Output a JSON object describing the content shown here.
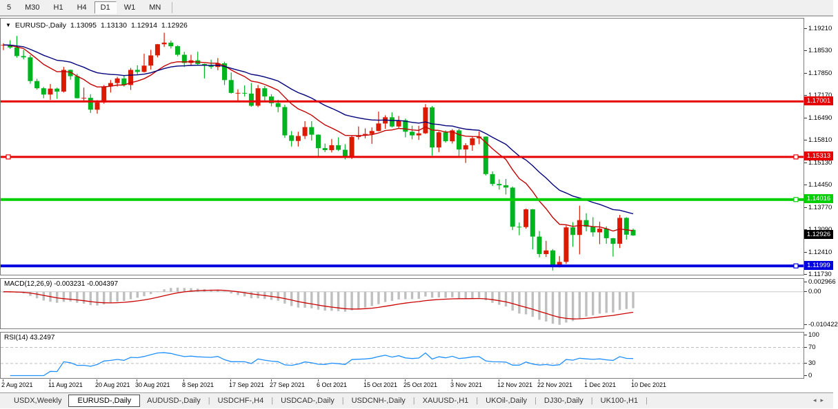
{
  "toolbar": {
    "items": [
      {
        "label": "5",
        "active": false
      },
      {
        "label": "M30",
        "active": false
      },
      {
        "label": "H1",
        "active": false
      },
      {
        "label": "H4",
        "active": false
      },
      {
        "label": "D1",
        "active": true
      },
      {
        "label": "W1",
        "active": false
      },
      {
        "label": "MN",
        "active": false
      }
    ]
  },
  "chart": {
    "title": {
      "dropdown_icon": "▼",
      "symbol": "EURUSD-,Daily",
      "open": "1.13095",
      "high": "1.13130",
      "low": "1.12914",
      "close": "1.12926"
    },
    "colors": {
      "bull": "#dd1a00",
      "bear": "#00b420",
      "ma_fast": "#c40000",
      "ma_slow": "#00007c",
      "macd_hist": "#bfbfbf",
      "macd_signal": "#cc0000",
      "rsi": "#1e90ff",
      "level_red": "#e60000",
      "level_green": "#00cf00",
      "level_blue": "#0000dd"
    },
    "hlines": [
      {
        "value": 1.17001,
        "label": "1.17001",
        "color": "#e60000",
        "width": 3,
        "handles": []
      },
      {
        "value": 1.15313,
        "label": "1.15313",
        "color": "#e60000",
        "width": 3,
        "handles": [
          "left",
          "right"
        ]
      },
      {
        "value": 1.14016,
        "label": "1.14016",
        "color": "#00cf00",
        "width": 4,
        "handles": [
          "right"
        ]
      },
      {
        "value": 1.11999,
        "label": "1.11999",
        "color": "#0000dd",
        "width": 4,
        "handles": [
          "right"
        ]
      }
    ],
    "current_price_tag": {
      "value": 1.12926,
      "label": "1.12926",
      "bg": "#000000",
      "fg": "#ffffff"
    }
  },
  "indicators": {
    "macd": {
      "label": "MACD(12,26,9) -0.003231 -0.004397",
      "fast": 12,
      "slow": 26,
      "signal": 9,
      "axis_labels": [
        {
          "v": 0.002966,
          "label": "0.002966"
        },
        {
          "v": 0,
          "label": "0.00"
        },
        {
          "v": -0.010422,
          "label": "-0.010422"
        }
      ]
    },
    "rsi": {
      "label": "RSI(14) 43.2497",
      "period": 14,
      "axis_labels": [
        {
          "v": 100,
          "label": "100"
        },
        {
          "v": 70,
          "label": "70",
          "dashed": true
        },
        {
          "v": 30,
          "label": "30",
          "dashed": true
        },
        {
          "v": 0,
          "label": "0"
        }
      ]
    }
  },
  "price_axis": {
    "labels": [
      {
        "v": 1.1921,
        "label": "1.19210"
      },
      {
        "v": 1.1853,
        "label": "1.18530"
      },
      {
        "v": 1.1785,
        "label": "1.17850"
      },
      {
        "v": 1.1717,
        "label": "1.17170"
      },
      {
        "v": 1.1649,
        "label": "1.16490"
      },
      {
        "v": 1.1581,
        "label": "1.15810"
      },
      {
        "v": 1.1513,
        "label": "1.15130"
      },
      {
        "v": 1.1445,
        "label": "1.14450"
      },
      {
        "v": 1.1377,
        "label": "1.13770"
      },
      {
        "v": 1.1309,
        "label": "1.13090"
      },
      {
        "v": 1.1241,
        "label": "1.12410"
      },
      {
        "v": 1.1173,
        "label": "1.11730"
      }
    ]
  },
  "date_axis": {
    "ticks": [
      {
        "label": "2 Aug 2021",
        "index": 0
      },
      {
        "label": "11 Aug 2021",
        "index": 7
      },
      {
        "label": "20 Aug 2021",
        "index": 14
      },
      {
        "label": "30 Aug 2021",
        "index": 20
      },
      {
        "label": "8 Sep 2021",
        "index": 27
      },
      {
        "label": "17 Sep 2021",
        "index": 34
      },
      {
        "label": "27 Sep 2021",
        "index": 40
      },
      {
        "label": "6 Oct 2021",
        "index": 47
      },
      {
        "label": "15 Oct 2021",
        "index": 54
      },
      {
        "label": "25 Oct 2021",
        "index": 60
      },
      {
        "label": "3 Nov 2021",
        "index": 67
      },
      {
        "label": "12 Nov 2021",
        "index": 74
      },
      {
        "label": "22 Nov 2021",
        "index": 80
      },
      {
        "label": "1 Dec 2021",
        "index": 87
      },
      {
        "label": "10 Dec 2021",
        "index": 94
      }
    ]
  },
  "chart_data": {
    "type": "candlestick",
    "symbol": "EURUSD-",
    "timeframe": "Daily",
    "visible_range": {
      "price_top": 1.1952,
      "price_bottom": 1.1173
    },
    "up_is_red_down_is_green": true,
    "candles": [
      [
        1.187,
        1.1877,
        1.1856,
        1.1872
      ],
      [
        1.1872,
        1.1886,
        1.186,
        1.1864
      ],
      [
        1.1864,
        1.1899,
        1.1833,
        1.1838
      ],
      [
        1.1838,
        1.1857,
        1.1828,
        1.1834
      ],
      [
        1.1834,
        1.1841,
        1.1754,
        1.1762
      ],
      [
        1.1762,
        1.1769,
        1.1736,
        1.174
      ],
      [
        1.174,
        1.1744,
        1.171,
        1.1721
      ],
      [
        1.1721,
        1.1753,
        1.1705,
        1.1739
      ],
      [
        1.1739,
        1.1742,
        1.1708,
        1.173
      ],
      [
        1.173,
        1.1805,
        1.1727,
        1.1796
      ],
      [
        1.1796,
        1.1797,
        1.1766,
        1.1777
      ],
      [
        1.1777,
        1.1784,
        1.1709,
        1.171
      ],
      [
        1.171,
        1.1742,
        1.17,
        1.1711
      ],
      [
        1.1711,
        1.1722,
        1.1665,
        1.1675
      ],
      [
        1.1675,
        1.1704,
        1.1663,
        1.1697
      ],
      [
        1.1697,
        1.175,
        1.1693,
        1.1746
      ],
      [
        1.1746,
        1.1765,
        1.1727,
        1.1756
      ],
      [
        1.1756,
        1.1775,
        1.1745,
        1.177
      ],
      [
        1.177,
        1.1779,
        1.1745,
        1.175
      ],
      [
        1.175,
        1.1802,
        1.1735,
        1.1796
      ],
      [
        1.1796,
        1.181,
        1.1782,
        1.179
      ],
      [
        1.179,
        1.1845,
        1.1788,
        1.1809
      ],
      [
        1.1809,
        1.1857,
        1.1797,
        1.184
      ],
      [
        1.184,
        1.1875,
        1.1834,
        1.1874
      ],
      [
        1.1874,
        1.1909,
        1.1866,
        1.1879
      ],
      [
        1.1879,
        1.1885,
        1.1861,
        1.1868
      ],
      [
        1.1868,
        1.1871,
        1.1837,
        1.1842
      ],
      [
        1.1842,
        1.1851,
        1.1805,
        1.1817
      ],
      [
        1.1817,
        1.1842,
        1.181,
        1.1825
      ],
      [
        1.1825,
        1.1851,
        1.1809,
        1.1814
      ],
      [
        1.1814,
        1.1815,
        1.177,
        1.181
      ],
      [
        1.181,
        1.1827,
        1.1799,
        1.1805
      ],
      [
        1.1805,
        1.1832,
        1.1795,
        1.1816
      ],
      [
        1.1816,
        1.1821,
        1.175,
        1.1765
      ],
      [
        1.1765,
        1.1788,
        1.1724,
        1.1726
      ],
      [
        1.1726,
        1.1737,
        1.17,
        1.1726
      ],
      [
        1.1726,
        1.1749,
        1.1715,
        1.1724
      ],
      [
        1.1724,
        1.1756,
        1.1684,
        1.1687
      ],
      [
        1.1687,
        1.175,
        1.1683,
        1.174
      ],
      [
        1.174,
        1.1747,
        1.1701,
        1.1715
      ],
      [
        1.1715,
        1.1722,
        1.1685,
        1.1695
      ],
      [
        1.1695,
        1.1705,
        1.1667,
        1.1683
      ],
      [
        1.1683,
        1.169,
        1.1589,
        1.1597
      ],
      [
        1.1597,
        1.161,
        1.1563,
        1.158
      ],
      [
        1.158,
        1.1608,
        1.1563,
        1.1595
      ],
      [
        1.1595,
        1.164,
        1.1586,
        1.1622
      ],
      [
        1.1622,
        1.164,
        1.1581,
        1.1599
      ],
      [
        1.1599,
        1.16,
        1.1529,
        1.1558
      ],
      [
        1.1558,
        1.1572,
        1.1546,
        1.1552
      ],
      [
        1.1552,
        1.1586,
        1.1545,
        1.1567
      ],
      [
        1.1567,
        1.1591,
        1.1549,
        1.1553
      ],
      [
        1.1553,
        1.157,
        1.1524,
        1.1529
      ],
      [
        1.1529,
        1.1597,
        1.1525,
        1.1592
      ],
      [
        1.1592,
        1.1624,
        1.1584,
        1.1597
      ],
      [
        1.1597,
        1.1618,
        1.1588,
        1.1601
      ],
      [
        1.1601,
        1.1621,
        1.1571,
        1.161
      ],
      [
        1.161,
        1.1669,
        1.1609,
        1.1633
      ],
      [
        1.1633,
        1.1658,
        1.1617,
        1.1652
      ],
      [
        1.1652,
        1.1667,
        1.1621,
        1.1624
      ],
      [
        1.1624,
        1.1656,
        1.162,
        1.1643
      ],
      [
        1.1643,
        1.1648,
        1.1591,
        1.1608
      ],
      [
        1.1608,
        1.1626,
        1.1585,
        1.1597
      ],
      [
        1.1597,
        1.1626,
        1.1583,
        1.1603
      ],
      [
        1.1603,
        1.1692,
        1.1601,
        1.1682
      ],
      [
        1.1682,
        1.1686,
        1.1535,
        1.156
      ],
      [
        1.156,
        1.1609,
        1.1546,
        1.1606
      ],
      [
        1.1606,
        1.1612,
        1.1575,
        1.1579
      ],
      [
        1.1579,
        1.1616,
        1.1572,
        1.1612
      ],
      [
        1.1612,
        1.1617,
        1.1528,
        1.1554
      ],
      [
        1.1554,
        1.1573,
        1.1513,
        1.1567
      ],
      [
        1.1567,
        1.1595,
        1.155,
        1.1588
      ],
      [
        1.1588,
        1.1609,
        1.157,
        1.1593
      ],
      [
        1.1593,
        1.1594,
        1.1475,
        1.1479
      ],
      [
        1.1479,
        1.1487,
        1.1443,
        1.1449
      ],
      [
        1.1449,
        1.1463,
        1.1432,
        1.1445
      ],
      [
        1.1445,
        1.1464,
        1.1417,
        1.1438
      ],
      [
        1.1438,
        1.1441,
        1.1309,
        1.1319
      ],
      [
        1.1319,
        1.1332,
        1.1293,
        1.1318
      ],
      [
        1.1318,
        1.1374,
        1.1313,
        1.1372
      ],
      [
        1.1372,
        1.1373,
        1.125,
        1.1289
      ],
      [
        1.1289,
        1.1306,
        1.1226,
        1.1236
      ],
      [
        1.1236,
        1.1276,
        1.1227,
        1.1247
      ],
      [
        1.1247,
        1.1251,
        1.1186,
        1.12
      ],
      [
        1.12,
        1.123,
        1.1195,
        1.1212
      ],
      [
        1.1212,
        1.1323,
        1.1206,
        1.1317
      ],
      [
        1.1317,
        1.1333,
        1.1258,
        1.1294
      ],
      [
        1.1294,
        1.1383,
        1.1235,
        1.1339
      ],
      [
        1.1339,
        1.136,
        1.1305,
        1.1319
      ],
      [
        1.1319,
        1.1348,
        1.1289,
        1.1302
      ],
      [
        1.1302,
        1.1334,
        1.1266,
        1.1313
      ],
      [
        1.1313,
        1.132,
        1.1267,
        1.1284
      ],
      [
        1.1284,
        1.1285,
        1.1228,
        1.1267
      ],
      [
        1.1267,
        1.1355,
        1.1254,
        1.1346
      ],
      [
        1.1346,
        1.1348,
        1.128,
        1.1295
      ],
      [
        1.13095,
        1.1313,
        1.12914,
        1.12926
      ]
    ]
  },
  "tab_bar": {
    "tabs": [
      {
        "label": "USDX,Weekly",
        "active": false
      },
      {
        "label": "EURUSD-,Daily",
        "active": true
      },
      {
        "label": "AUDUSD-,Daily",
        "active": false
      },
      {
        "label": "USDCHF-,H4",
        "active": false
      },
      {
        "label": "USDCAD-,Daily",
        "active": false
      },
      {
        "label": "USDCNH-,Daily",
        "active": false
      },
      {
        "label": "XAUUSD-,H1",
        "active": false
      },
      {
        "label": "UKOil-,Daily",
        "active": false
      },
      {
        "label": "DJ30-,Daily",
        "active": false
      },
      {
        "label": "UK100-,H1",
        "active": false
      }
    ],
    "scroll_left_icon": "◂",
    "scroll_right_icon": "▸"
  }
}
